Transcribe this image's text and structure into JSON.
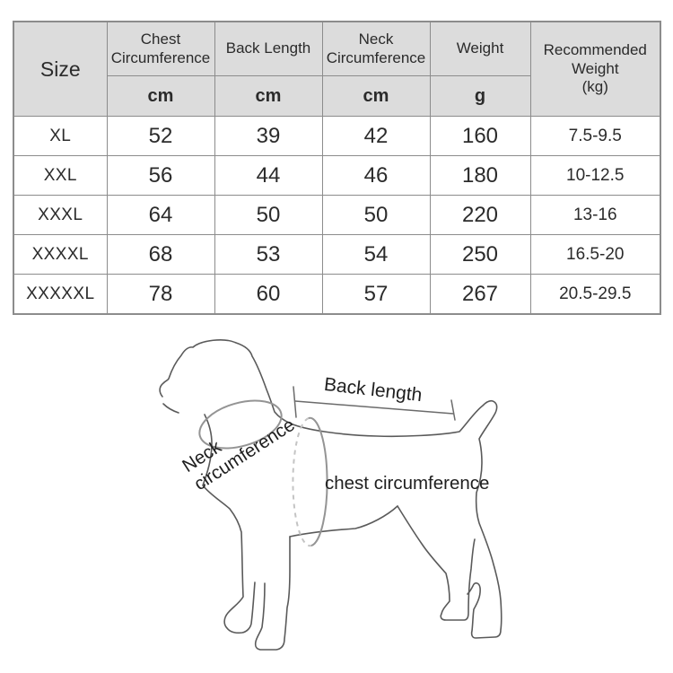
{
  "table": {
    "size_label": "Size",
    "headers": [
      {
        "label": "Chest Circumference",
        "unit": "cm"
      },
      {
        "label": "Back Length",
        "unit": "cm"
      },
      {
        "label": "Neck Circumference",
        "unit": "cm"
      },
      {
        "label": "Weight",
        "unit": "g"
      }
    ],
    "recommended_label": "Recommended Weight",
    "recommended_unit": "(kg)",
    "rows": [
      {
        "size": "XL",
        "chest": "52",
        "back": "39",
        "neck": "42",
        "weight": "160",
        "recommended": "7.5-9.5"
      },
      {
        "size": "XXL",
        "chest": "56",
        "back": "44",
        "neck": "46",
        "weight": "180",
        "recommended": "10-12.5"
      },
      {
        "size": "XXXL",
        "chest": "64",
        "back": "50",
        "neck": "50",
        "weight": "220",
        "recommended": "13-16"
      },
      {
        "size": "XXXXL",
        "chest": "68",
        "back": "53",
        "neck": "54",
        "weight": "250",
        "recommended": "16.5-20"
      },
      {
        "size": "XXXXXL",
        "chest": "78",
        "back": "60",
        "neck": "57",
        "weight": "267",
        "recommended": "20.5-29.5"
      }
    ]
  },
  "diagram": {
    "back_length_label": "Back length",
    "neck_label_line1": "Neck",
    "neck_label_line2": "circumference",
    "chest_label": "chest circumference"
  },
  "colors": {
    "header_bg": "#dcdcdc",
    "table_border": "#8c8c8c",
    "text": "#2b2b2b",
    "outline_stroke": "#5a5a5a",
    "girth_stroke": "#949494"
  },
  "chart_data": {
    "type": "table",
    "title": "Pet clothing size chart",
    "columns": [
      "Size",
      "Chest Circumference (cm)",
      "Back Length (cm)",
      "Neck Circumference (cm)",
      "Weight (g)",
      "Recommended Weight (kg)"
    ],
    "rows": [
      [
        "XL",
        52,
        39,
        42,
        160,
        "7.5-9.5"
      ],
      [
        "XXL",
        56,
        44,
        46,
        180,
        "10-12.5"
      ],
      [
        "XXXL",
        64,
        50,
        50,
        220,
        "13-16"
      ],
      [
        "XXXXL",
        68,
        53,
        54,
        250,
        "16.5-20"
      ],
      [
        "XXXXXL",
        78,
        60,
        57,
        267,
        "20.5-29.5"
      ]
    ]
  }
}
